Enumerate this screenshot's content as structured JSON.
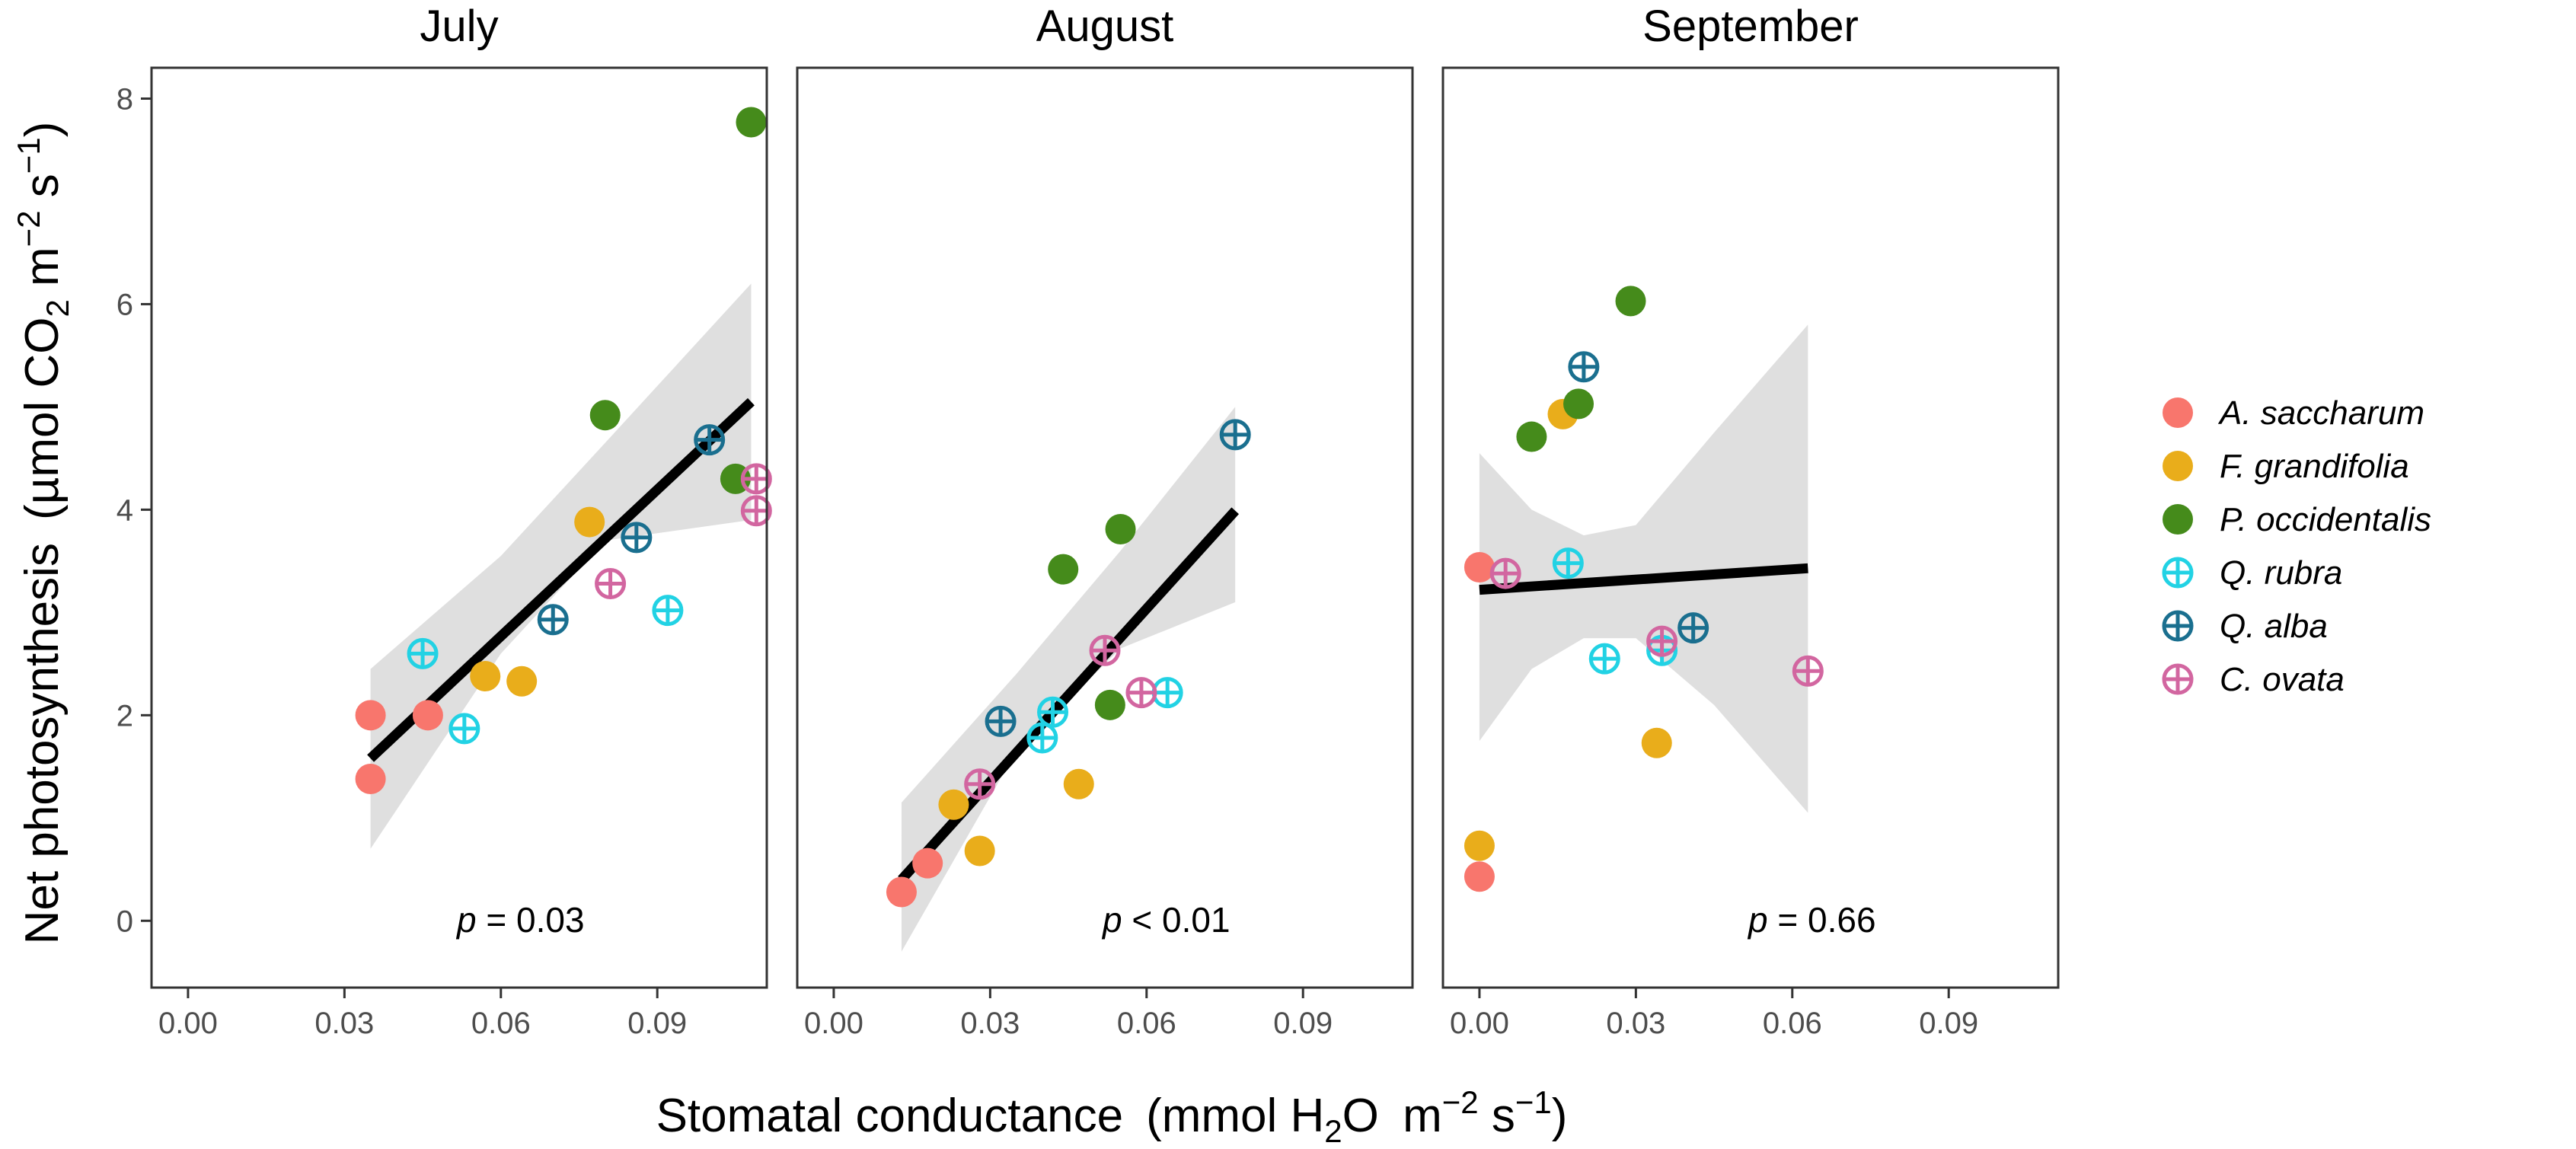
{
  "chart_data": {
    "type": "scatter",
    "y_axis_label": {
      "main": "Net photosynthesis",
      "open": "(µmol CO",
      "sub": "2",
      "m": " m",
      "exp1": "−2",
      "s": " s",
      "exp2": "−1",
      "close": ")"
    },
    "x_axis_label": {
      "main": "Stomatal conductance",
      "open": "(mmol H",
      "sub": "2",
      "o": "O",
      "m": " m",
      "exp1": "−2",
      "s": " s",
      "exp2": "−1",
      "close": ")"
    },
    "xlim": [
      -0.007,
      0.111
    ],
    "ylim": [
      -0.65,
      8.3
    ],
    "x_ticks": [
      "0.00",
      "0.03",
      "0.06",
      "0.09"
    ],
    "x_tick_values": [
      0,
      0.03,
      0.06,
      0.09
    ],
    "y_ticks": [
      "0",
      "2",
      "4",
      "6",
      "8"
    ],
    "y_tick_values": [
      0,
      2,
      4,
      6,
      8
    ],
    "legend": [
      {
        "name": "A. saccharum",
        "color": "#F8766D",
        "marker": "filled"
      },
      {
        "name": "F. grandifolia",
        "color": "#E9AD1B",
        "marker": "filled"
      },
      {
        "name": "P. occidentalis",
        "color": "#458B1B",
        "marker": "filled"
      },
      {
        "name": "Q. rubra",
        "color": "#22D2E4",
        "marker": "crossed"
      },
      {
        "name": "Q. alba",
        "color": "#1A6F8F",
        "marker": "crossed"
      },
      {
        "name": "C. ovata",
        "color": "#D266A0",
        "marker": "crossed"
      }
    ],
    "panels": [
      {
        "title": "July",
        "p_label": "p",
        "p_text": " = 0.03",
        "fit": {
          "x1": 0.035,
          "y1": 1.58,
          "x2": 0.108,
          "y2": 5.05
        },
        "band": [
          [
            0.035,
            0.7,
            2.45
          ],
          [
            0.06,
            2.6,
            3.55
          ],
          [
            0.08,
            3.7,
            4.65
          ],
          [
            0.108,
            3.9,
            6.2
          ]
        ],
        "points": [
          {
            "species": "A. saccharum",
            "x": 0.035,
            "y": 2.0
          },
          {
            "species": "A. saccharum",
            "x": 0.035,
            "y": 1.38
          },
          {
            "species": "A. saccharum",
            "x": 0.046,
            "y": 2.0
          },
          {
            "species": "F. grandifolia",
            "x": 0.057,
            "y": 2.38
          },
          {
            "species": "F. grandifolia",
            "x": 0.064,
            "y": 2.33
          },
          {
            "species": "F. grandifolia",
            "x": 0.077,
            "y": 3.88
          },
          {
            "species": "P. occidentalis",
            "x": 0.08,
            "y": 4.92
          },
          {
            "species": "P. occidentalis",
            "x": 0.105,
            "y": 4.3
          },
          {
            "species": "P. occidentalis",
            "x": 0.108,
            "y": 7.77
          },
          {
            "species": "Q. rubra",
            "x": 0.045,
            "y": 2.6
          },
          {
            "species": "Q. rubra",
            "x": 0.053,
            "y": 1.87
          },
          {
            "species": "Q. rubra",
            "x": 0.092,
            "y": 3.02
          },
          {
            "species": "Q. alba",
            "x": 0.07,
            "y": 2.93
          },
          {
            "species": "Q. alba",
            "x": 0.086,
            "y": 3.73
          },
          {
            "species": "Q. alba",
            "x": 0.1,
            "y": 4.68
          },
          {
            "species": "C. ovata",
            "x": 0.081,
            "y": 3.28
          },
          {
            "species": "C. ovata",
            "x": 0.109,
            "y": 4.3
          },
          {
            "species": "C. ovata",
            "x": 0.109,
            "y": 3.99
          }
        ]
      },
      {
        "title": "August",
        "p_label": "p",
        "p_text": " < 0.01",
        "fit": {
          "x1": 0.013,
          "y1": 0.4,
          "x2": 0.077,
          "y2": 3.99
        },
        "band": [
          [
            0.013,
            -0.3,
            1.15
          ],
          [
            0.035,
            1.65,
            2.4
          ],
          [
            0.055,
            2.65,
            3.6
          ],
          [
            0.077,
            3.1,
            5.0
          ]
        ],
        "points": [
          {
            "species": "A. saccharum",
            "x": 0.013,
            "y": 0.28
          },
          {
            "species": "A. saccharum",
            "x": 0.018,
            "y": 0.56
          },
          {
            "species": "F. grandifolia",
            "x": 0.023,
            "y": 1.13
          },
          {
            "species": "F. grandifolia",
            "x": 0.028,
            "y": 0.68
          },
          {
            "species": "F. grandifolia",
            "x": 0.047,
            "y": 1.33
          },
          {
            "species": "P. occidentalis",
            "x": 0.044,
            "y": 3.42
          },
          {
            "species": "P. occidentalis",
            "x": 0.055,
            "y": 3.81
          },
          {
            "species": "P. occidentalis",
            "x": 0.053,
            "y": 2.1
          },
          {
            "species": "Q. rubra",
            "x": 0.04,
            "y": 1.78
          },
          {
            "species": "Q. rubra",
            "x": 0.042,
            "y": 2.03
          },
          {
            "species": "Q. rubra",
            "x": 0.064,
            "y": 2.22
          },
          {
            "species": "Q. alba",
            "x": 0.032,
            "y": 1.94
          },
          {
            "species": "Q. alba",
            "x": 0.077,
            "y": 4.73
          },
          {
            "species": "C. ovata",
            "x": 0.028,
            "y": 1.33
          },
          {
            "species": "C. ovata",
            "x": 0.052,
            "y": 2.63
          },
          {
            "species": "C. ovata",
            "x": 0.059,
            "y": 2.22
          }
        ]
      },
      {
        "title": "September",
        "p_label": "p",
        "p_text": " = 0.66",
        "fit": {
          "x1": 0.0,
          "y1": 3.22,
          "x2": 0.063,
          "y2": 3.43
        },
        "band": [
          [
            0.0,
            1.75,
            4.55
          ],
          [
            0.01,
            2.45,
            4.0
          ],
          [
            0.02,
            2.75,
            3.75
          ],
          [
            0.03,
            2.75,
            3.85
          ],
          [
            0.045,
            2.1,
            4.75
          ],
          [
            0.063,
            1.05,
            5.8
          ]
        ],
        "points": [
          {
            "species": "A. saccharum",
            "x": 0.0,
            "y": 3.44
          },
          {
            "species": "A. saccharum",
            "x": 0.0,
            "y": 0.43
          },
          {
            "species": "F. grandifolia",
            "x": 0.0,
            "y": 0.73
          },
          {
            "species": "F. grandifolia",
            "x": 0.016,
            "y": 4.93
          },
          {
            "species": "F. grandifolia",
            "x": 0.034,
            "y": 1.73
          },
          {
            "species": "P. occidentalis",
            "x": 0.01,
            "y": 4.71
          },
          {
            "species": "P. occidentalis",
            "x": 0.019,
            "y": 5.03
          },
          {
            "species": "P. occidentalis",
            "x": 0.029,
            "y": 6.03
          },
          {
            "species": "Q. rubra",
            "x": 0.017,
            "y": 3.48
          },
          {
            "species": "Q. rubra",
            "x": 0.024,
            "y": 2.55
          },
          {
            "species": "Q. rubra",
            "x": 0.035,
            "y": 2.63
          },
          {
            "species": "Q. alba",
            "x": 0.02,
            "y": 5.39
          },
          {
            "species": "Q. alba",
            "x": 0.041,
            "y": 2.85
          },
          {
            "species": "C. ovata",
            "x": 0.005,
            "y": 3.38
          },
          {
            "species": "C. ovata",
            "x": 0.035,
            "y": 2.72
          },
          {
            "species": "C. ovata",
            "x": 0.063,
            "y": 2.43
          }
        ]
      }
    ]
  }
}
